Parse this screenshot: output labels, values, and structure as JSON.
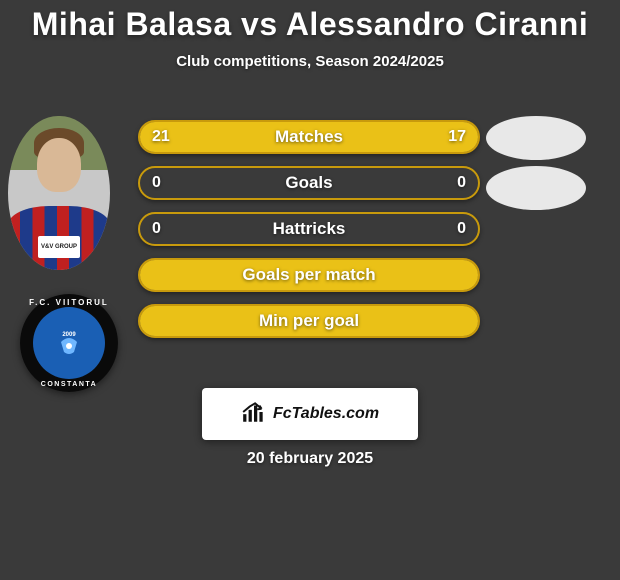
{
  "title": "Mihai Balasa vs Alessandro Ciranni",
  "subtitle": "Club competitions, Season 2024/2025",
  "player1": {
    "name": "Mihai Balasa",
    "sponsor_text": "V&V GROUP",
    "club_ring_top": "F.C. VIITORUL",
    "club_ring_bottom": "CONSTANTA",
    "club_year": "2009"
  },
  "player2": {
    "name": "Alessandro Ciranni"
  },
  "colors": {
    "accent": "#eac117",
    "accent_border": "#c89a0c",
    "text_white": "#ffffff",
    "box_bg": "#ffffff"
  },
  "stats": [
    {
      "label": "Matches",
      "left_val": "21",
      "right_val": "17",
      "left_pct": 55,
      "right_pct": 45,
      "show_fill": true
    },
    {
      "label": "Goals",
      "left_val": "0",
      "right_val": "0",
      "left_pct": 0,
      "right_pct": 0,
      "show_fill": false
    },
    {
      "label": "Hattricks",
      "left_val": "0",
      "right_val": "0",
      "left_pct": 0,
      "right_pct": 0,
      "show_fill": false
    },
    {
      "label": "Goals per match",
      "left_val": "",
      "right_val": "",
      "left_pct": 100,
      "right_pct": 0,
      "show_fill": true
    },
    {
      "label": "Min per goal",
      "left_val": "",
      "right_val": "",
      "left_pct": 100,
      "right_pct": 0,
      "show_fill": true
    }
  ],
  "brand": "FcTables.com",
  "date": "20 february 2025"
}
